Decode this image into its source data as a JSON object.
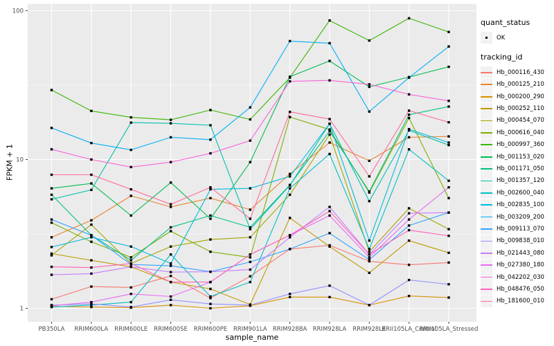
{
  "figure": {
    "xlabel": "sample_name",
    "ylabel": "FPKM + 1"
  },
  "legend": {
    "quant_status_title": "quant_status",
    "quant_status_items": [
      {
        "label": "OK",
        "marker": "black-point"
      }
    ],
    "tracking_id_title": "tracking_id"
  },
  "chart_data": {
    "type": "line",
    "title": "",
    "xlabel": "sample_name",
    "ylabel": "FPKM + 1",
    "y_scale": "log10",
    "y_ticks": [
      1,
      10,
      100
    ],
    "ylim": [
      0.82,
      110
    ],
    "grid": "on-white-major-and-minor-over-grey-panel",
    "legend_position": "right",
    "panel_color": "#EBEBEB",
    "legend_key_color": "#F2F2F2",
    "tick_label_color": "#4D4D4D",
    "point_marker": {
      "shape": "square",
      "size": 3.4,
      "color": "#000000"
    },
    "categories": [
      "PB350LA",
      "RRIM600LA",
      "RRIM600LE",
      "RRIM600SE",
      "RRIM600PE",
      "RRIM901LA",
      "RRIM928BA",
      "RRIM928LA",
      "RRIM928LE",
      "RRII105LA_Control",
      "RRII105LA_Stressed"
    ],
    "series": [
      {
        "name": "Hb_000116_430",
        "color": "#F8766D",
        "values": [
          1.15,
          1.4,
          1.38,
          1.65,
          1.17,
          1.64,
          2.5,
          2.65,
          2.07,
          1.96,
          2.03
        ]
      },
      {
        "name": "Hb_000125_210",
        "color": "#EA8331",
        "values": [
          3.0,
          3.9,
          5.7,
          4.8,
          5.5,
          4.6,
          8.0,
          13.0,
          9.8,
          14.1,
          14.3
        ]
      },
      {
        "name": "Hb_000200_290",
        "color": "#D89000",
        "values": [
          1.03,
          1.02,
          1.01,
          1.05,
          1.0,
          1.04,
          1.19,
          1.19,
          1.05,
          1.21,
          1.18
        ]
      },
      {
        "name": "Hb_000252_110",
        "color": "#C09B00",
        "values": [
          2.33,
          2.1,
          1.9,
          1.5,
          1.35,
          1.06,
          4.05,
          2.6,
          1.73,
          2.85,
          2.36
        ]
      },
      {
        "name": "Hb_000454_070",
        "color": "#A3A500",
        "values": [
          2.27,
          3.65,
          2.0,
          2.6,
          2.9,
          3.0,
          5.8,
          14.7,
          2.4,
          4.7,
          3.4
        ]
      },
      {
        "name": "Hb_000616_040",
        "color": "#7CAE00",
        "values": [
          3.76,
          2.8,
          2.2,
          3.3,
          2.4,
          2.2,
          19.3,
          15.9,
          6.0,
          19.0,
          5.5
        ]
      },
      {
        "name": "Hb_000997_360",
        "color": "#39B600",
        "values": [
          29.3,
          21.2,
          19.2,
          18.5,
          21.5,
          18.6,
          35.5,
          86.0,
          63.0,
          89.0,
          72.0
        ]
      },
      {
        "name": "Hb_001153_020",
        "color": "#00BB4E",
        "values": [
          6.4,
          6.9,
          4.2,
          7.0,
          4.0,
          9.6,
          36.0,
          46.0,
          30.8,
          35.8,
          42.0
        ]
      },
      {
        "name": "Hb_001171_050",
        "color": "#00C087",
        "values": [
          5.8,
          3.1,
          2.1,
          3.5,
          4.2,
          3.5,
          6.75,
          15.5,
          6.1,
          20.0,
          22.7
        ]
      },
      {
        "name": "Hb_001357_120",
        "color": "#00C1AB",
        "values": [
          5.4,
          6.25,
          17.7,
          17.5,
          17.0,
          3.4,
          6.7,
          17.4,
          5.25,
          15.7,
          12.5
        ]
      },
      {
        "name": "Hb_002600_040",
        "color": "#00BFC4",
        "values": [
          1.02,
          1.05,
          1.1,
          2.3,
          1.2,
          1.5,
          6.4,
          10.9,
          2.5,
          11.7,
          7.2
        ]
      },
      {
        "name": "Hb_002835_100",
        "color": "#00BAE0",
        "values": [
          2.58,
          3.0,
          2.6,
          2.0,
          6.3,
          6.4,
          7.7,
          17.4,
          2.85,
          16.0,
          13.0
        ]
      },
      {
        "name": "Hb_003209_200",
        "color": "#00B0F6",
        "values": [
          16.3,
          12.9,
          11.6,
          14.1,
          13.6,
          22.4,
          62.5,
          60.5,
          21.0,
          35.5,
          57.5
        ]
      },
      {
        "name": "Hb_009113_070",
        "color": "#35A2FF",
        "values": [
          3.95,
          3.1,
          1.97,
          1.93,
          1.76,
          2.05,
          2.5,
          3.2,
          2.12,
          3.6,
          4.4
        ]
      },
      {
        "name": "Hb_009838_010",
        "color": "#9590FF",
        "values": [
          1.05,
          1.07,
          1.02,
          1.14,
          1.07,
          1.05,
          1.25,
          1.42,
          1.05,
          1.55,
          1.45
        ]
      },
      {
        "name": "Hb_021443_080",
        "color": "#C77CFF",
        "values": [
          1.68,
          1.71,
          1.9,
          1.75,
          1.76,
          1.82,
          3.0,
          4.8,
          2.3,
          4.35,
          4.4
        ]
      },
      {
        "name": "Hb_027380_180",
        "color": "#E76BF3",
        "values": [
          1.04,
          1.1,
          1.25,
          1.2,
          1.5,
          2.3,
          3.1,
          4.2,
          2.2,
          3.95,
          6.5
        ]
      },
      {
        "name": "Hb_042202_030",
        "color": "#FA62DB",
        "values": [
          11.7,
          10.0,
          8.9,
          9.6,
          11.0,
          13.4,
          33.5,
          34.0,
          32.0,
          27.4,
          24.8
        ]
      },
      {
        "name": "Hb_048476_050",
        "color": "#FF62BC",
        "values": [
          1.9,
          1.88,
          2.0,
          1.5,
          1.5,
          2.3,
          3.1,
          4.5,
          2.3,
          3.35,
          3.07
        ]
      },
      {
        "name": "Hb_181600_010",
        "color": "#FF6A98",
        "values": [
          7.9,
          7.9,
          6.3,
          5.0,
          6.5,
          4.0,
          20.9,
          18.7,
          7.7,
          21.3,
          17.8
        ]
      }
    ]
  }
}
